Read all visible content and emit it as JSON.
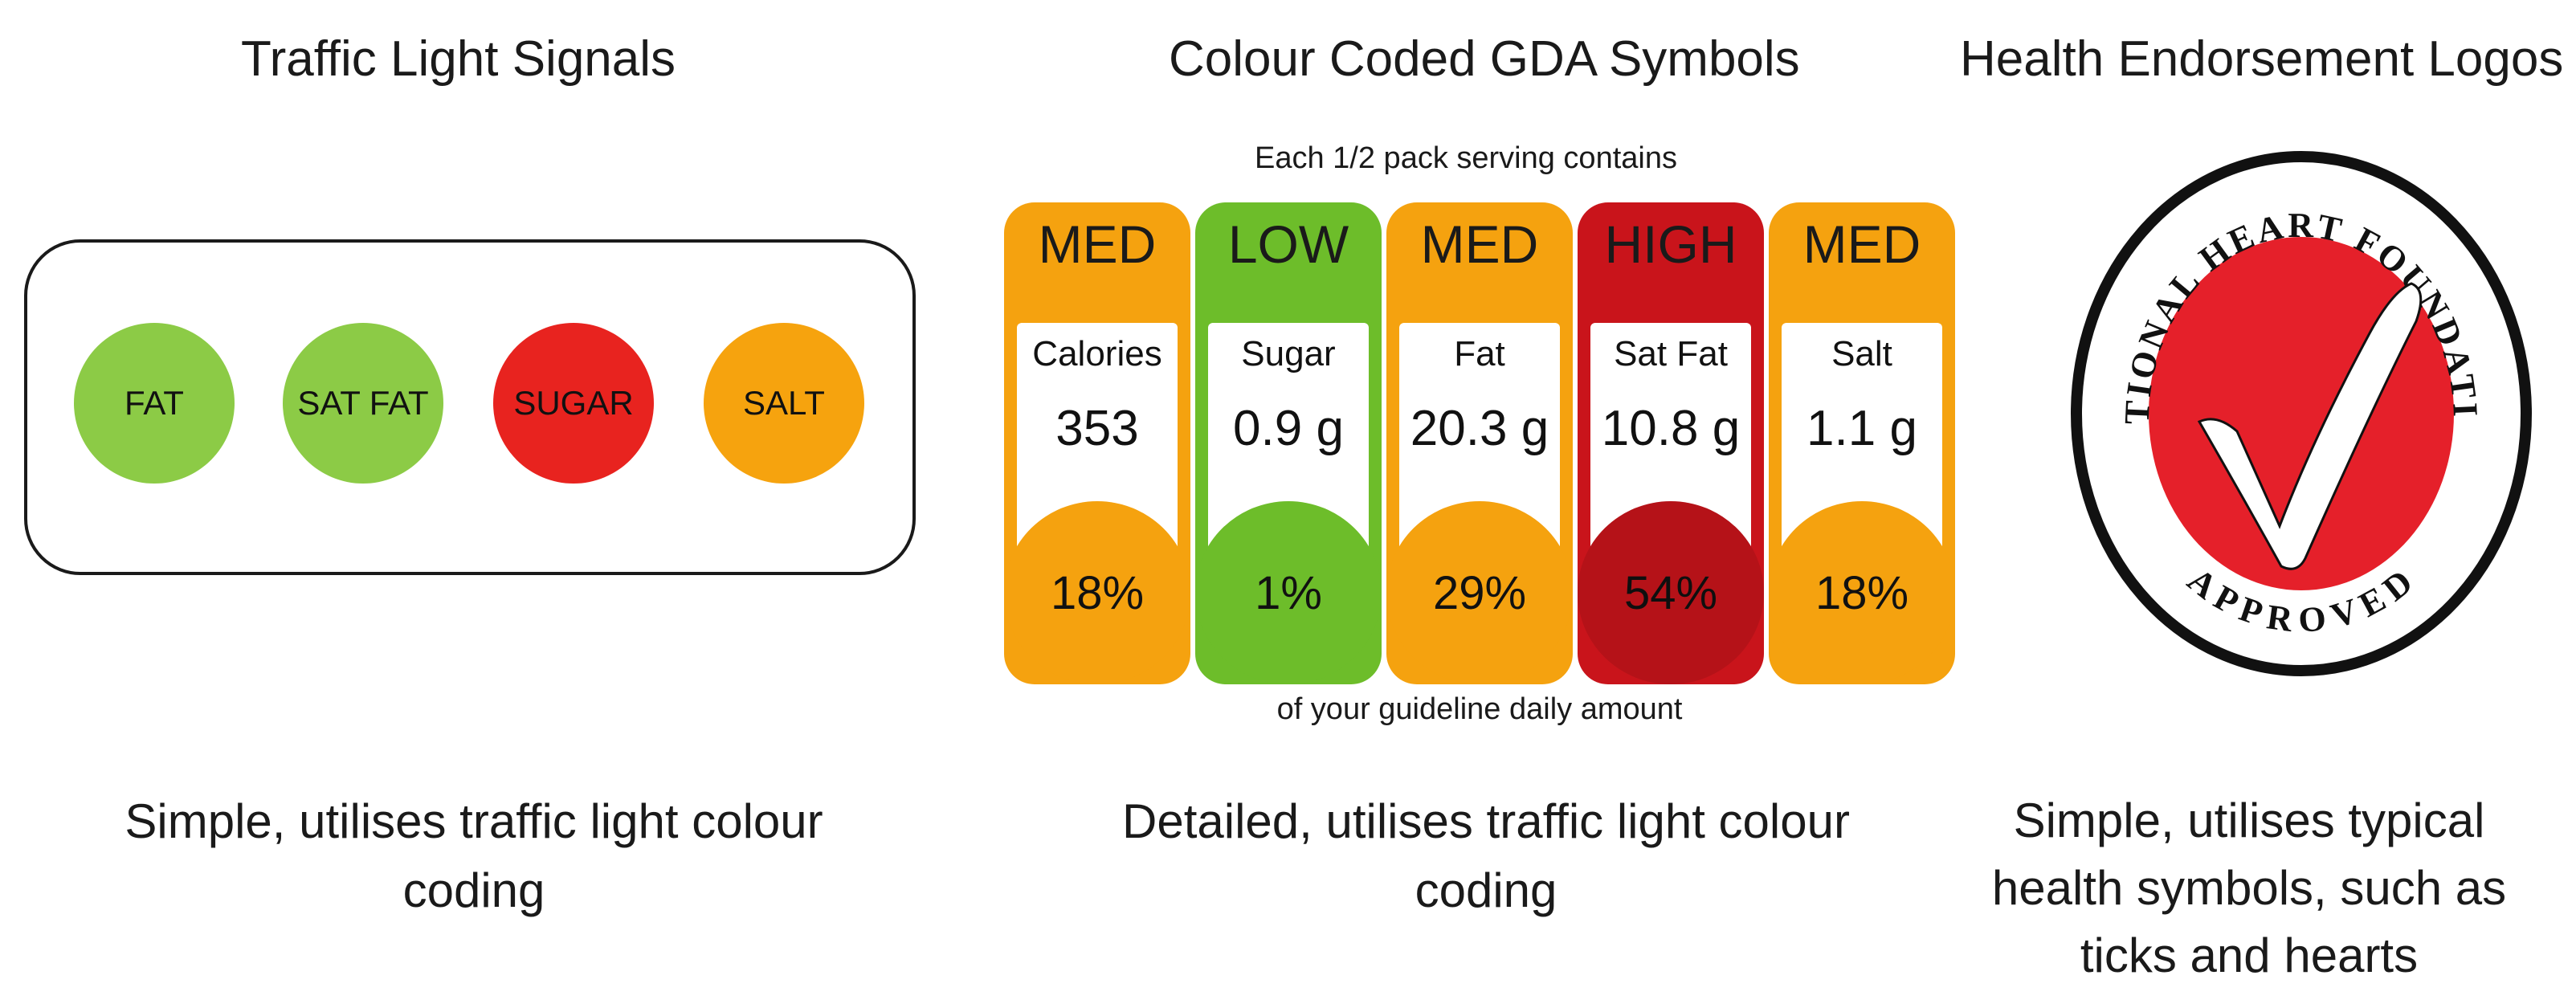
{
  "panels": {
    "traffic": {
      "title": "Traffic Light Signals",
      "caption_line1": "Simple, utilises traffic light colour",
      "caption_line2": "coding",
      "lights": [
        {
          "label": "FAT",
          "color": "#8CCB46"
        },
        {
          "label": "SAT FAT",
          "color": "#8CCB46"
        },
        {
          "label": "SUGAR",
          "color": "#E8231F"
        },
        {
          "label": "SALT",
          "color": "#F6A30E"
        }
      ]
    },
    "gda": {
      "title": "Colour Coded GDA Symbols",
      "header": "Each 1/2 pack serving contains",
      "footer": "of your guideline daily amount",
      "caption_line1": "Detailed, utilises traffic light colour",
      "caption_line2": "coding",
      "columns": [
        {
          "level": "MED",
          "name": "Calories",
          "amount": "353",
          "percent": "18%",
          "color": "#F5A20F"
        },
        {
          "level": "LOW",
          "name": "Sugar",
          "amount": "0.9 g",
          "percent": "1%",
          "color": "#6DBD2A"
        },
        {
          "level": "MED",
          "name": "Fat",
          "amount": "20.3 g",
          "percent": "29%",
          "color": "#F5A20F"
        },
        {
          "level": "HIGH",
          "name": "Sat Fat",
          "amount": "10.8 g",
          "percent": "54%",
          "color": "#C9141B"
        },
        {
          "level": "MED",
          "name": "Salt",
          "amount": "1.1 g",
          "percent": "18%",
          "color": "#F5A20F"
        }
      ]
    },
    "health": {
      "title": "Health Endorsement Logos",
      "logo_top_text": "NATIONAL HEART FOUNDATION",
      "logo_bottom_text": "APPROVED",
      "caption_line1": "Simple, utilises typical",
      "caption_line2": "health symbols, such as",
      "caption_line3": "ticks and hearts",
      "logo_color": "#E5202A"
    }
  }
}
